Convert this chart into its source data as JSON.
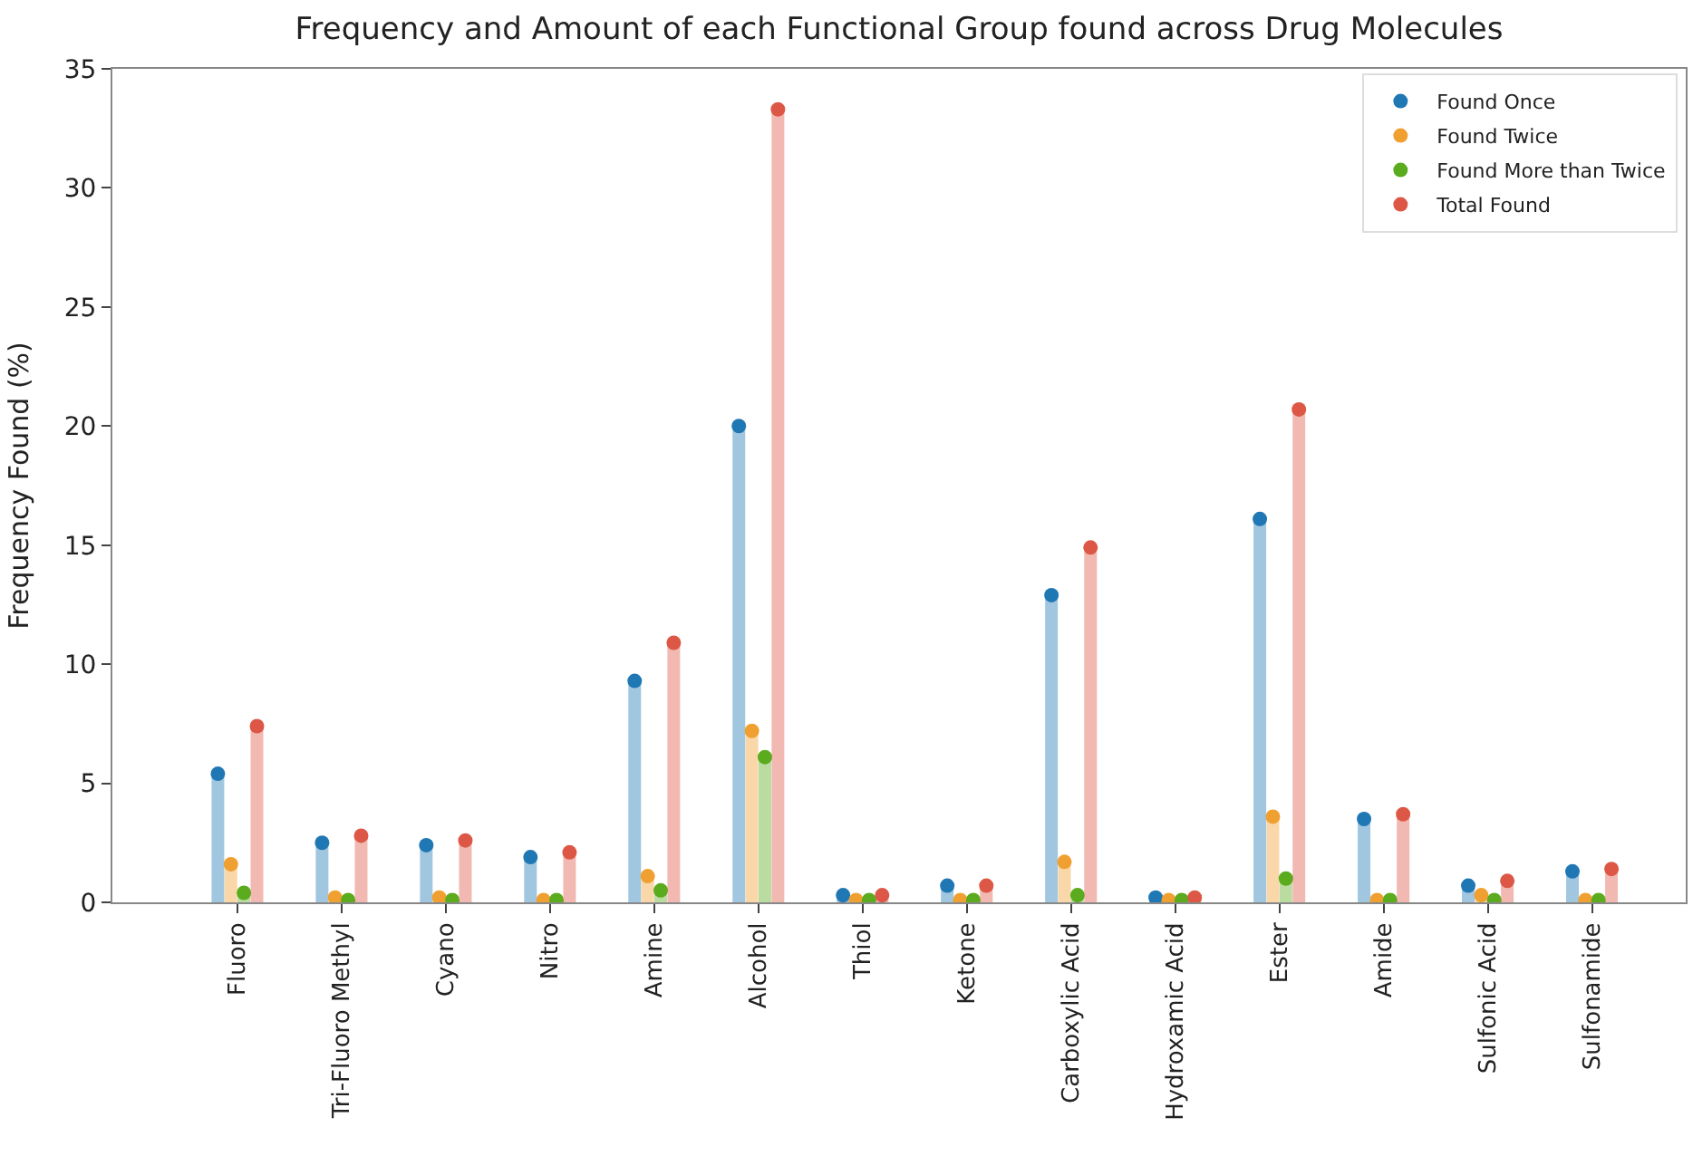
{
  "chart_data": {
    "type": "lollipop",
    "title": "Frequency and Amount of each Functional Group found across Drug Molecules",
    "ylabel": "Frequency Found (%)",
    "categories": [
      "Fluoro",
      "Tri-Fluoro Methyl",
      "Cyano",
      "Nitro",
      "Amine",
      "Alcohol",
      "Thiol",
      "Ketone",
      "Carboxylic Acid",
      "Hydroxamic Acid",
      "Ester",
      "Amide",
      "Sulfonic Acid",
      "Sulfonamide"
    ],
    "series": [
      {
        "name": "Found Once",
        "color": "#1f77b4",
        "values": [
          5.4,
          2.5,
          2.4,
          1.9,
          9.3,
          20.0,
          0.3,
          0.7,
          12.9,
          0.2,
          16.1,
          3.5,
          0.7,
          1.3
        ]
      },
      {
        "name": "Found Twice",
        "color": "#f0a030",
        "values": [
          1.6,
          0.2,
          0.2,
          0.1,
          1.1,
          7.2,
          0.1,
          0.1,
          1.7,
          0.1,
          3.6,
          0.1,
          0.3,
          0.1
        ]
      },
      {
        "name": "Found More than Twice",
        "color": "#5aab1e",
        "values": [
          0.4,
          0.1,
          0.1,
          0.1,
          0.5,
          6.1,
          0.1,
          0.1,
          0.3,
          0.1,
          1.0,
          0.1,
          0.1,
          0.1
        ]
      },
      {
        "name": "Total Found",
        "color": "#dd5746",
        "values": [
          7.4,
          2.8,
          2.6,
          2.1,
          10.9,
          33.3,
          0.3,
          0.7,
          14.9,
          0.2,
          20.7,
          3.7,
          0.9,
          1.4
        ]
      }
    ],
    "ylim": [
      0,
      35
    ],
    "yticks": [
      0,
      5,
      10,
      15,
      20,
      25,
      30,
      35
    ],
    "legend": "top right",
    "marker": "circle"
  }
}
